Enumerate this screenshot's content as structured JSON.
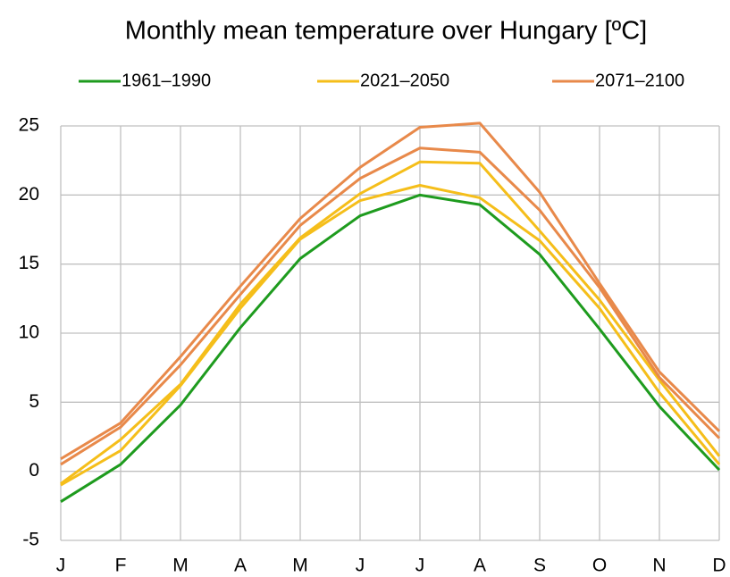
{
  "chart_data": {
    "type": "line",
    "title": "Monthly mean temperature over Hungary [ºC]",
    "categories": [
      "J",
      "F",
      "M",
      "A",
      "M",
      "J",
      "J",
      "A",
      "S",
      "O",
      "N",
      "D"
    ],
    "series": [
      {
        "name": "1961–1990",
        "color": "#1e9b1e",
        "values": [
          -2.2,
          0.5,
          4.8,
          10.4,
          15.4,
          18.5,
          20.0,
          19.3,
          15.7,
          10.3,
          4.7,
          0.1
        ]
      },
      {
        "name": "2021–2050",
        "color": "#f5be1a",
        "low": [
          -1.0,
          1.5,
          6.2,
          11.8,
          16.8,
          19.6,
          20.7,
          19.8,
          16.7,
          11.8,
          5.7,
          0.5
        ],
        "high": [
          -0.9,
          2.3,
          6.3,
          12.1,
          16.9,
          20.1,
          22.4,
          22.3,
          17.4,
          12.4,
          6.6,
          1.1
        ]
      },
      {
        "name": "2071–2100",
        "color": "#e8894a",
        "low": [
          0.5,
          3.2,
          7.7,
          12.8,
          17.8,
          21.2,
          23.4,
          23.1,
          18.9,
          13.3,
          6.8,
          2.4
        ],
        "high": [
          0.9,
          3.5,
          8.3,
          13.4,
          18.3,
          22.0,
          24.9,
          25.2,
          20.2,
          13.6,
          7.2,
          2.9
        ]
      }
    ],
    "ylim": [
      -5,
      25
    ],
    "yticks": [
      -5,
      0,
      5,
      10,
      15,
      20,
      25
    ],
    "grid": true
  }
}
